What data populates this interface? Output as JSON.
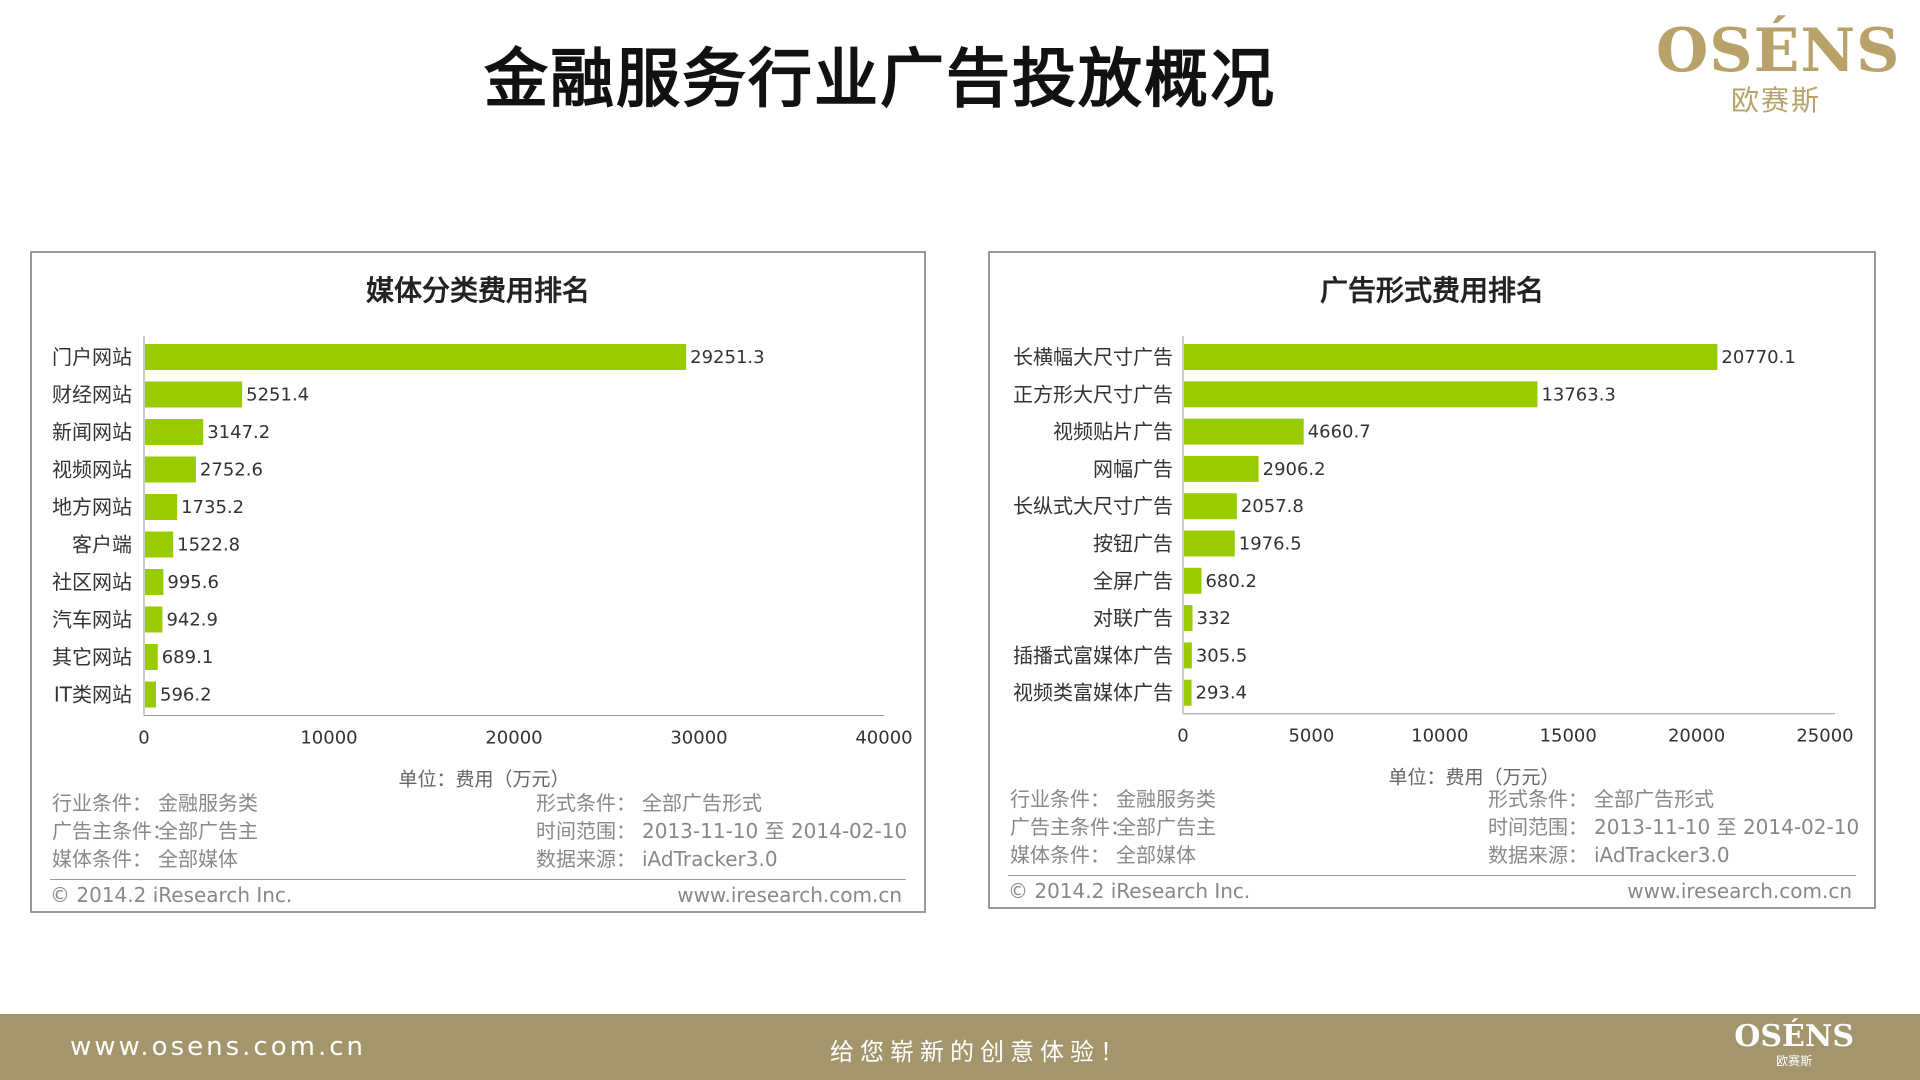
{
  "page": {
    "title": "金融服务行业广告投放概况",
    "logo_text": "OSÉNS",
    "logo_sub": "欧赛斯",
    "footer_url": "www.osens.com.cn",
    "footer_slogan": "给您崭新的创意体验！",
    "footer_logo_text": "OSÉNS",
    "footer_logo_sub": "欧赛斯"
  },
  "colors": {
    "bar": "#99cc00",
    "brand": "#b8a26a",
    "footer_bg": "#a3966c"
  },
  "chart_data": [
    {
      "type": "bar",
      "orientation": "horizontal",
      "title": "媒体分类费用排名",
      "categories": [
        "门户网站",
        "财经网站",
        "新闻网站",
        "视频网站",
        "地方网站",
        "客户端",
        "社区网站",
        "汽车网站",
        "其它网站",
        "IT类网站"
      ],
      "values": [
        29251.3,
        5251.4,
        3147.2,
        2752.6,
        1735.2,
        1522.8,
        995.6,
        942.9,
        689.1,
        596.2
      ],
      "value_labels": [
        "29251.3",
        "5251.4",
        "3147.2",
        "2752.6",
        "1735.2",
        "1522.8",
        "995.6",
        "942.9",
        "689.1",
        "596.2"
      ],
      "xlim": [
        0,
        40000
      ],
      "xticks": [
        "0",
        "10000",
        "20000",
        "30000",
        "40000"
      ],
      "xlabel": "单位：费用（万元）",
      "grid": false,
      "meta_left": [
        {
          "key": "行业条件：",
          "value": "金融服务类"
        },
        {
          "key": "广告主条件：",
          "value": "全部广告主"
        },
        {
          "key": "媒体条件：",
          "value": "全部媒体"
        }
      ],
      "meta_right": [
        {
          "key": "形式条件：",
          "value": "全部广告形式"
        },
        {
          "key": "时间范围：",
          "value": "2013-11-10 至 2014-02-10"
        },
        {
          "key": "数据来源：",
          "value": "iAdTracker3.0"
        }
      ],
      "copyright": "© 2014.2 iResearch Inc.",
      "source_url": "www.iresearch.com.cn"
    },
    {
      "type": "bar",
      "orientation": "horizontal",
      "title": "广告形式费用排名",
      "categories": [
        "长横幅大尺寸广告",
        "正方形大尺寸广告",
        "视频贴片广告",
        "网幅广告",
        "长纵式大尺寸广告",
        "按钮广告",
        "全屏广告",
        "对联广告",
        "插播式富媒体广告",
        "视频类富媒体广告"
      ],
      "values": [
        20770.1,
        13763.3,
        4660.7,
        2906.2,
        2057.8,
        1976.5,
        680.2,
        332,
        305.5,
        293.4
      ],
      "value_labels": [
        "20770.1",
        "13763.3",
        "4660.7",
        "2906.2",
        "2057.8",
        "1976.5",
        "680.2",
        "332",
        "305.5",
        "293.4"
      ],
      "xlim": [
        0,
        25000
      ],
      "xticks": [
        "0",
        "5000",
        "10000",
        "15000",
        "20000",
        "25000"
      ],
      "xlabel": "单位：费用（万元）",
      "grid": false,
      "meta_left": [
        {
          "key": "行业条件：",
          "value": "金融服务类"
        },
        {
          "key": "广告主条件：",
          "value": "全部广告主"
        },
        {
          "key": "媒体条件：",
          "value": "全部媒体"
        }
      ],
      "meta_right": [
        {
          "key": "形式条件：",
          "value": "全部广告形式"
        },
        {
          "key": "时间范围：",
          "value": "2013-11-10 至 2014-02-10"
        },
        {
          "key": "数据来源：",
          "value": "iAdTracker3.0"
        }
      ],
      "copyright": "© 2014.2 iResearch Inc.",
      "source_url": "www.iresearch.com.cn"
    }
  ]
}
